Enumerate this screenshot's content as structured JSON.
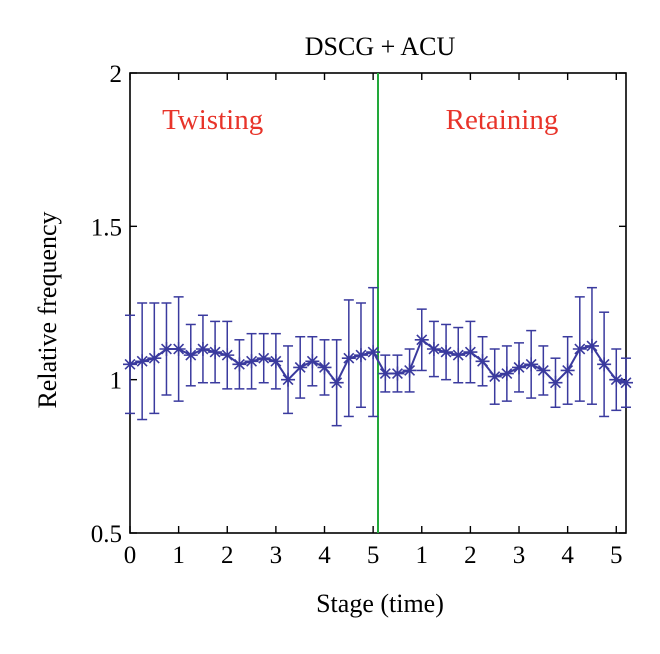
{
  "chart_data": {
    "type": "line",
    "title": "DSCG + ACU",
    "xlabel": "Stage (time)",
    "ylabel": "Relative frequency",
    "ylim": [
      0.5,
      2
    ],
    "yticks": [
      "0.5",
      "1",
      "1.5",
      "2"
    ],
    "xlim": [
      0,
      10.2
    ],
    "xticks": [
      {
        "pos": 0,
        "label": "0"
      },
      {
        "pos": 1,
        "label": "1"
      },
      {
        "pos": 2,
        "label": "2"
      },
      {
        "pos": 3,
        "label": "3"
      },
      {
        "pos": 4,
        "label": "4"
      },
      {
        "pos": 5,
        "label": "5"
      },
      {
        "pos": 6,
        "label": "1"
      },
      {
        "pos": 7,
        "label": "2"
      },
      {
        "pos": 8,
        "label": "3"
      },
      {
        "pos": 9,
        "label": "4"
      },
      {
        "pos": 10,
        "label": "5"
      }
    ],
    "divider_x": 5.1,
    "divider_color": "#22a83a",
    "series_color": "#3a3a9e",
    "annotation_color": "#e8342a",
    "annotations": [
      {
        "text": "Twisting",
        "x": 1.7,
        "y": 1.85
      },
      {
        "text": "Retaining",
        "x": 7.65,
        "y": 1.85
      }
    ],
    "series": [
      {
        "x": [
          0,
          0.25,
          0.5,
          0.75,
          1.0,
          1.25,
          1.5,
          1.75,
          2.0,
          2.25,
          2.5,
          2.75,
          3.0,
          3.25,
          3.5,
          3.75,
          4.0,
          4.25,
          4.5,
          4.75,
          5.0,
          5.25,
          5.5,
          5.75,
          6.0,
          6.25,
          6.5,
          6.75,
          7.0,
          7.25,
          7.5,
          7.75,
          8.0,
          8.25,
          8.5,
          8.75,
          9.0,
          9.25,
          9.5,
          9.75,
          10.0,
          10.2
        ],
        "y": [
          1.05,
          1.06,
          1.07,
          1.1,
          1.1,
          1.08,
          1.1,
          1.09,
          1.08,
          1.05,
          1.06,
          1.07,
          1.06,
          1.0,
          1.04,
          1.06,
          1.04,
          0.99,
          1.07,
          1.08,
          1.09,
          1.02,
          1.02,
          1.03,
          1.13,
          1.1,
          1.09,
          1.08,
          1.09,
          1.06,
          1.01,
          1.02,
          1.04,
          1.05,
          1.03,
          0.99,
          1.03,
          1.1,
          1.11,
          1.05,
          1.0,
          0.99
        ],
        "err": [
          0.16,
          0.19,
          0.18,
          0.15,
          0.17,
          0.1,
          0.11,
          0.1,
          0.11,
          0.08,
          0.09,
          0.08,
          0.09,
          0.11,
          0.1,
          0.08,
          0.09,
          0.14,
          0.19,
          0.17,
          0.21,
          0.06,
          0.06,
          0.07,
          0.1,
          0.09,
          0.09,
          0.09,
          0.1,
          0.08,
          0.09,
          0.09,
          0.08,
          0.11,
          0.08,
          0.08,
          0.11,
          0.17,
          0.19,
          0.17,
          0.1,
          0.08
        ]
      }
    ],
    "grid": false
  }
}
